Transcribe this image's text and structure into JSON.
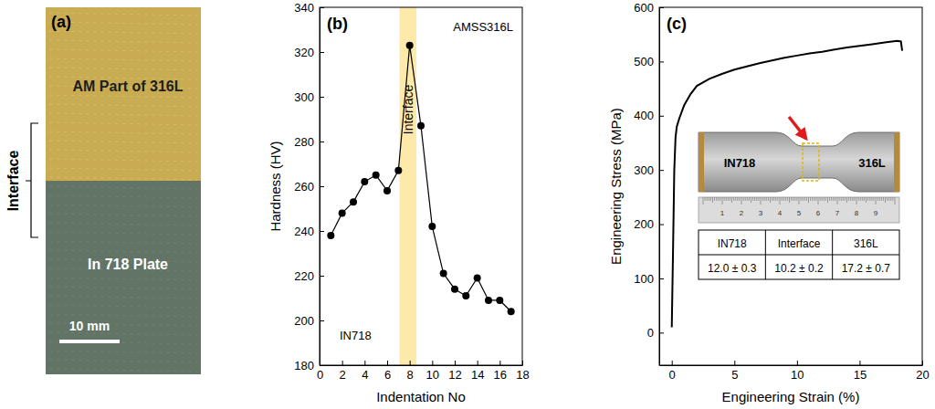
{
  "panel_a": {
    "label": "(a)",
    "top_text": "AM Part of 316L",
    "bottom_text": "In 718 Plate",
    "side_label": "Interface",
    "scale_bar": "10 mm"
  },
  "chart_data": [
    {
      "type": "line",
      "annotations": [
        "(b)",
        "AMSS316L",
        "IN718"
      ],
      "x_label": "Indentation No",
      "y_label": "Hardness (HV)",
      "x": [
        1,
        2,
        3,
        4,
        5,
        6,
        7,
        8,
        9,
        10,
        11,
        12,
        13,
        14,
        15,
        16,
        17
      ],
      "values": [
        238,
        248,
        253,
        262,
        265,
        258,
        267,
        323,
        287,
        242,
        221,
        214,
        211,
        219,
        209,
        209,
        204
      ],
      "color": "#000000",
      "marker": "circle",
      "xlim": [
        0,
        18
      ],
      "ylim": [
        180,
        340
      ],
      "xticks": [
        0,
        2,
        4,
        6,
        8,
        10,
        12,
        14,
        16,
        18
      ],
      "yticks": [
        180,
        200,
        220,
        240,
        260,
        280,
        300,
        320,
        340
      ],
      "highlight": {
        "x": [
          7.1,
          8.6
        ],
        "label": "Interface",
        "color": "#fde9a9"
      }
    },
    {
      "type": "line",
      "annotations": [
        "(c)"
      ],
      "x_label": "Engineering Strain (%)",
      "y_label": "Engineering Stress (MPa)",
      "x": [
        0,
        0.1,
        0.2,
        0.3,
        0.4,
        0.6,
        1,
        1.5,
        2,
        3,
        4,
        5,
        6,
        7,
        8,
        9,
        10,
        11,
        12,
        13,
        14,
        15,
        16,
        17,
        18,
        18.3,
        18.4
      ],
      "values": [
        10,
        150,
        300,
        360,
        380,
        395,
        420,
        440,
        455,
        468,
        477,
        485,
        491,
        497,
        502,
        507,
        511,
        515,
        518,
        522,
        526,
        529,
        532,
        535,
        538,
        537,
        520
      ],
      "color": "#000000",
      "xlim": [
        -1,
        20
      ],
      "ylim": [
        -60,
        600
      ],
      "xticks": [
        0,
        5,
        10,
        15,
        20
      ],
      "yticks": [
        0,
        100,
        200,
        300,
        400,
        500,
        600
      ],
      "inset": {
        "labels": [
          "IN718",
          "316L"
        ],
        "ruler_labels": [
          "1",
          "2",
          "3",
          "4",
          "5",
          "6",
          "7",
          "8",
          "9"
        ],
        "table": {
          "header": [
            "IN718",
            "Interface",
            "316L"
          ],
          "rows": [
            [
              "12.0 ± 0.3",
              "10.2 ± 0.2",
              "17.2 ± 0.7"
            ]
          ]
        }
      }
    }
  ]
}
